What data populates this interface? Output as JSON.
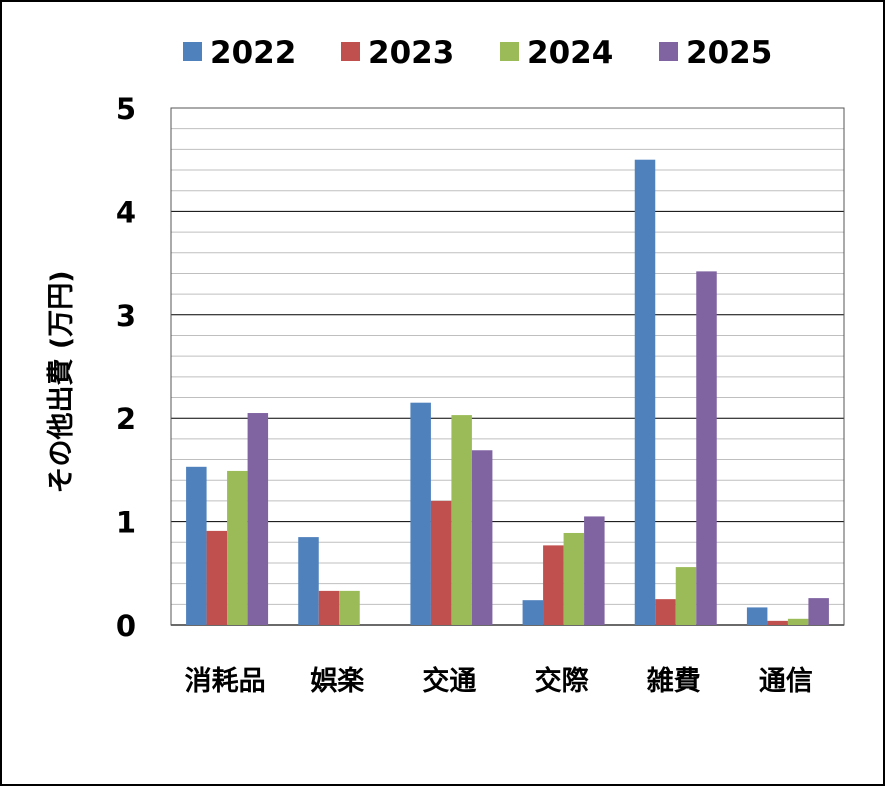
{
  "chart_data": {
    "type": "bar",
    "categories": [
      "消耗品",
      "娯楽",
      "交通",
      "交際",
      "雑費",
      "通信"
    ],
    "series": [
      {
        "name": "2022",
        "values": [
          1.53,
          0.85,
          2.15,
          0.24,
          4.5,
          0.17
        ]
      },
      {
        "name": "2023",
        "values": [
          0.91,
          0.33,
          1.2,
          0.77,
          0.25,
          0.04
        ]
      },
      {
        "name": "2024",
        "values": [
          1.49,
          0.33,
          2.03,
          0.89,
          0.56,
          0.06
        ]
      },
      {
        "name": "2025",
        "values": [
          2.05,
          0,
          1.69,
          1.05,
          3.42,
          0.26
        ]
      }
    ],
    "xlabel": "",
    "ylabel": "その他出費 (万円)",
    "ylim": [
      0,
      5
    ],
    "yticks": [
      "0",
      "1",
      "2",
      "3",
      "4",
      "5"
    ],
    "major_grid_step": 1,
    "minor_grid_step": 0.2,
    "grid": true,
    "legend_position": "top",
    "colors": [
      "#4f81bd",
      "#c0504d",
      "#9bbb59",
      "#8064a2"
    ]
  }
}
